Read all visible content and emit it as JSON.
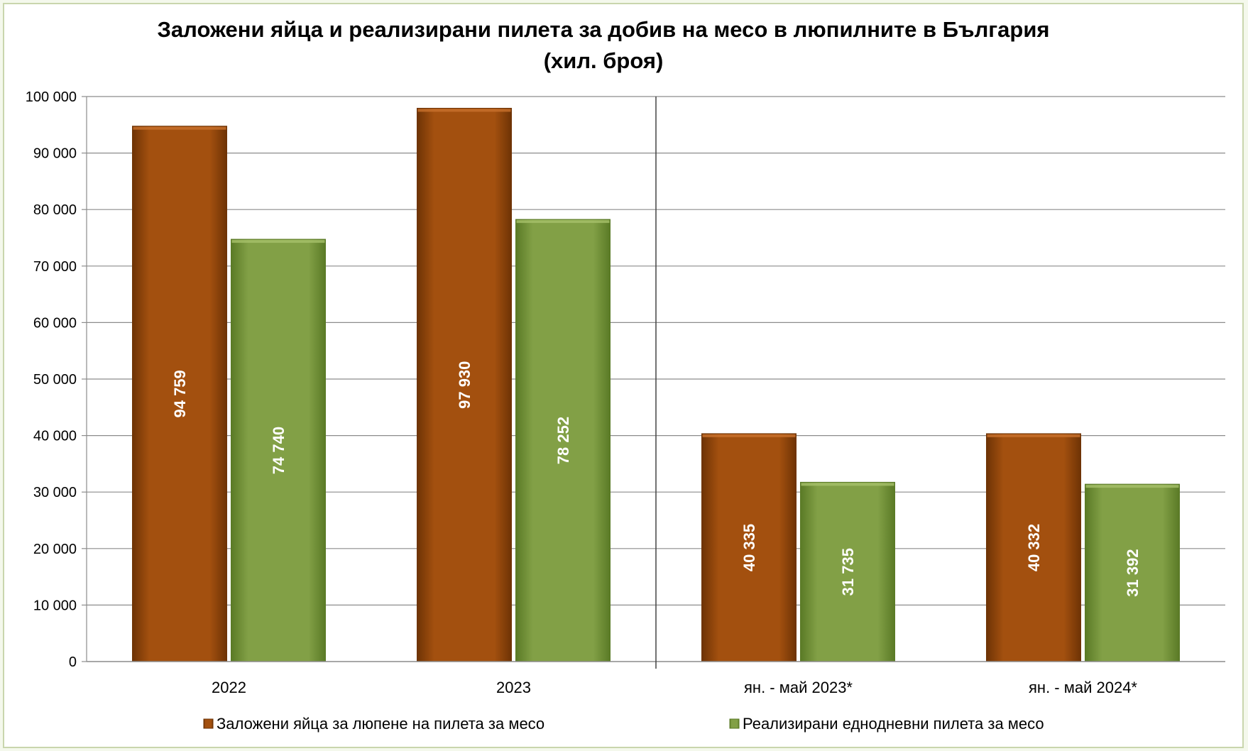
{
  "chart_data": {
    "type": "bar",
    "title": "Заложени яйца и реализирани пилета за добив на месо в люпилните в България",
    "subtitle": "(хил. броя)",
    "categories": [
      "2022",
      "2023",
      "ян. - май 2023*",
      "ян. - май 2024*"
    ],
    "series": [
      {
        "name": "Заложени яйца за люпене на пилета за месо",
        "values": [
          94759,
          97930,
          40335,
          40332
        ],
        "labels": [
          "94 759",
          "97 930",
          "40 335",
          "40 332"
        ],
        "color": "#9c4a0c"
      },
      {
        "name": "Реализирани еднодневни пилета за месо",
        "values": [
          74740,
          78252,
          31735,
          31392
        ],
        "labels": [
          "74 740",
          "78 252",
          "31 735",
          "31 392"
        ],
        "color": "#7e9c42"
      }
    ],
    "ylim": [
      0,
      100000
    ],
    "yticks": [
      0,
      10000,
      20000,
      30000,
      40000,
      50000,
      60000,
      70000,
      80000,
      90000,
      100000
    ],
    "ytick_labels": [
      "0",
      "10 000",
      "20 000",
      "30 000",
      "40 000",
      "50 000",
      "60 000",
      "70 000",
      "80 000",
      "90 000",
      "100 000"
    ],
    "grid": true,
    "legend_position": "bottom",
    "separator_after_category": 1
  }
}
